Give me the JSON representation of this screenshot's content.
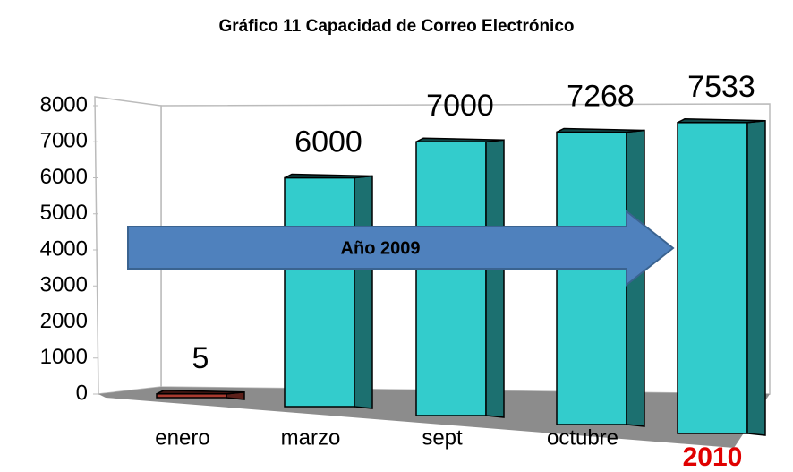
{
  "chart_data": {
    "type": "bar3d",
    "title": "Gráfico 11 Capacidad de Correo Electrónico",
    "categories": [
      "enero",
      "marzo",
      "sept",
      "octubre",
      "2010"
    ],
    "values": [
      5,
      6000,
      7000,
      7268,
      7533
    ],
    "colors": [
      "#a83a2f",
      "#33cccc",
      "#33cccc",
      "#33cccc",
      "#33cccc"
    ],
    "ylim": [
      0,
      8000
    ],
    "yticks": [
      0,
      1000,
      2000,
      3000,
      4000,
      5000,
      6000,
      7000,
      8000
    ],
    "annotations": [
      "Año 2009"
    ]
  }
}
